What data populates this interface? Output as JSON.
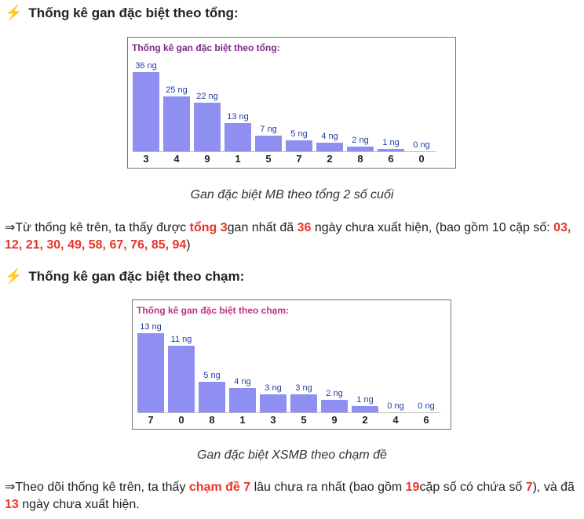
{
  "section1": {
    "icon": "lightning-icon",
    "heading": "Thống kê gan đặc biệt theo tổng:",
    "caption": "Gan đặc biệt MB theo tổng 2 số cuối",
    "para": {
      "prefix": "⇒Từ thống kê trên, ta thấy được ",
      "highlight1": "tổng 3",
      "mid1": "gan nhất đã ",
      "highlight2": "36",
      "mid2": " ngày chưa xuất hiện, (bao gồm 10 cặp số: ",
      "highlight3": "03, 12, 21, 30, 49, 58, 67, 76, 85, 94",
      "suffix": ")"
    }
  },
  "section2": {
    "icon": "lightning-icon",
    "heading": "Thống kê gan đặc biệt theo chạm:",
    "caption": "Gan đặc biệt XSMB theo chạm đề",
    "para": {
      "prefix": "⇒Theo dõi thống kê trên, ta thấy ",
      "highlight1": "chạm đề 7",
      "mid1": " lâu chưa ra nhất (bao gồm ",
      "highlight2": "19",
      "mid2": "cặp số có chứa số ",
      "highlight3": "7",
      "mid3": "), và đã ",
      "highlight4": "13",
      "suffix": " ngày chưa xuất hiện."
    }
  },
  "chart_data": [
    {
      "type": "bar",
      "title": "Thống kê gan đặc biệt theo tổng:",
      "categories": [
        "3",
        "4",
        "9",
        "1",
        "5",
        "7",
        "2",
        "8",
        "6",
        "0"
      ],
      "values": [
        36,
        25,
        22,
        13,
        7,
        5,
        4,
        2,
        1,
        0
      ],
      "value_labels": [
        "36 ng",
        "25 ng",
        "22 ng",
        "13 ng",
        "7 ng",
        "5 ng",
        "4 ng",
        "2 ng",
        "1 ng",
        "0 ng"
      ],
      "ylim": [
        0,
        36
      ],
      "bar_color": "#8f8ff2",
      "title_color": "#7b2a86"
    },
    {
      "type": "bar",
      "title": "Thống kê gan đặc biệt theo chạm:",
      "categories": [
        "7",
        "0",
        "8",
        "1",
        "3",
        "5",
        "9",
        "2",
        "4",
        "6"
      ],
      "values": [
        13,
        11,
        5,
        4,
        3,
        3,
        2,
        1,
        0,
        0
      ],
      "value_labels": [
        "13 ng",
        "11 ng",
        "5 ng",
        "4 ng",
        "3 ng",
        "3 ng",
        "2 ng",
        "1 ng",
        "0 ng",
        "0 ng"
      ],
      "ylim": [
        0,
        13
      ],
      "bar_color": "#8f8ff2",
      "title_color": "#c0308a"
    }
  ]
}
